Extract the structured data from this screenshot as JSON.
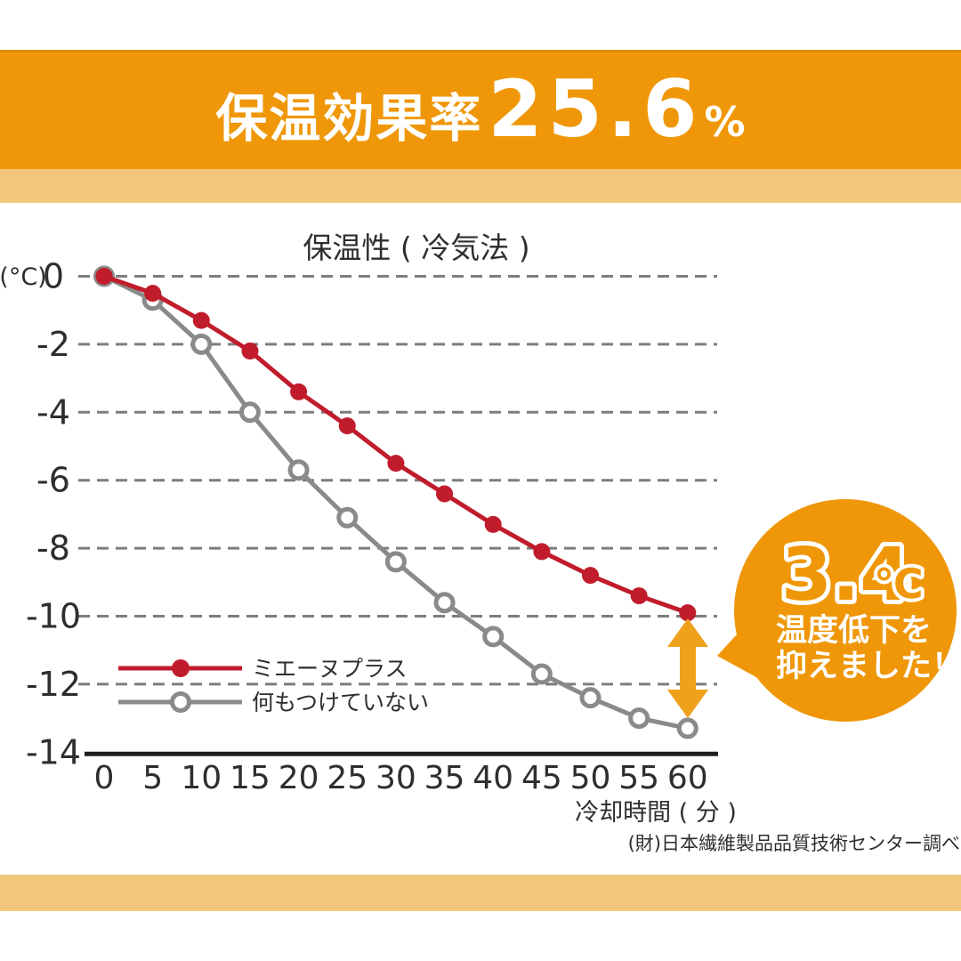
{
  "header": {
    "title_prefix": "保温効果率",
    "title_value": "25.6",
    "title_unit": "%"
  },
  "chart_data": {
    "type": "line",
    "title": "保温性 ( 冷気法 )",
    "y_unit_label": "(°C)",
    "xlabel": "冷却時間 ( 分 )",
    "x": [
      0,
      5,
      10,
      15,
      20,
      25,
      30,
      35,
      40,
      45,
      50,
      55,
      60
    ],
    "x_ticks": [
      "0",
      "5",
      "10",
      "15",
      "20",
      "25",
      "30",
      "35",
      "40",
      "45",
      "50",
      "55",
      "60"
    ],
    "y_ticks": [
      0,
      -2,
      -4,
      -6,
      -8,
      -10,
      -12,
      -14
    ],
    "y_tick_labels": [
      "0",
      "-2",
      "-4",
      "-6",
      "-8",
      "-10",
      "-12",
      "-14"
    ],
    "ylim": [
      -14,
      0
    ],
    "xlim": [
      0,
      60
    ],
    "grid": "horizontal-dashed",
    "legend_position": "inside-lower-left",
    "series": [
      {
        "name": "ミエーヌプラス",
        "marker": "filled-circle",
        "color": "#C01C2C",
        "values": [
          0,
          -0.5,
          -1.3,
          -2.2,
          -3.4,
          -4.4,
          -5.5,
          -6.4,
          -7.3,
          -8.1,
          -8.8,
          -9.4,
          -9.9
        ]
      },
      {
        "name": "何もつけていない",
        "marker": "open-circle",
        "color": "#8A8A8A",
        "values": [
          0,
          -0.7,
          -2.0,
          -4.0,
          -5.7,
          -7.1,
          -8.4,
          -9.6,
          -10.6,
          -11.7,
          -12.4,
          -13.0,
          -13.3
        ]
      }
    ]
  },
  "annotation": {
    "badge_value": "3.4",
    "badge_unit": "℃",
    "badge_line1": "温度低下を",
    "badge_line2": "抑えました！",
    "gap_degrees": 3.4,
    "gap_at_x": 60
  },
  "source": {
    "text": "(財)日本繊維製品品質技術センター調べ"
  },
  "colors": {
    "orange": "#EF9708",
    "tan": "#F3C67E",
    "red": "#C01C2C",
    "gray": "#8A8A8A",
    "grid": "#7D7D7D",
    "axis": "#1E1E1E",
    "text": "#2E2E2E",
    "arrow_orange": "#F0A11C"
  }
}
